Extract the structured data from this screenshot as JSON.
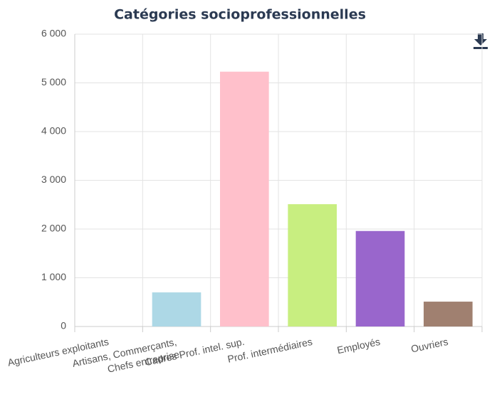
{
  "chart_data": {
    "type": "bar",
    "title": "Catégories socioprofessionnelles",
    "categories": [
      "Agriculteurs exploitants",
      "Artisans, Commerçants,\nChefs entreprise",
      "Cadres Prof. intel. sup.",
      "Prof. intermédiaires",
      "Employés",
      "Ouvriers"
    ],
    "values": [
      0,
      700,
      5230,
      2510,
      1960,
      510
    ],
    "colors": [
      "#8fbc8f",
      "#add8e6",
      "#ffc0cb",
      "#c8ee80",
      "#9966cc",
      "#a08070"
    ],
    "ylim": [
      0,
      6000
    ],
    "yticks": [
      0,
      {
        "value": 1000,
        "label": "1 000"
      },
      {
        "value": 2000,
        "label": "2 000"
      },
      {
        "value": 3000,
        "label": "3 000"
      },
      {
        "value": 4000,
        "label": "4 000"
      },
      {
        "value": 5000,
        "label": "5 000"
      },
      {
        "value": 6000,
        "label": "6 000"
      }
    ],
    "grid": true
  }
}
